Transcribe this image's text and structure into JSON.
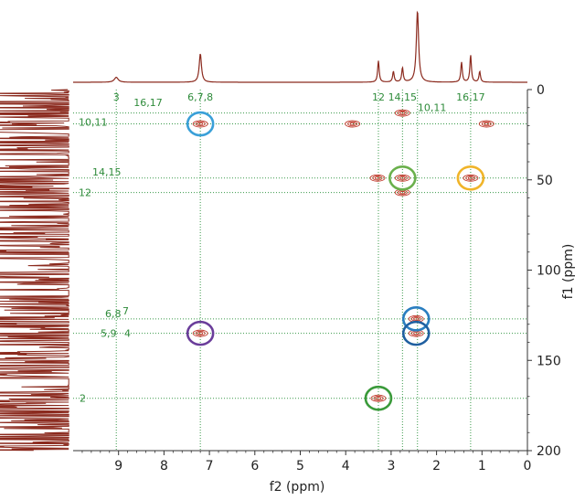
{
  "chart_data": {
    "type": "2d-nmr-hsqc-contour",
    "xlabel": "f2 (ppm)",
    "ylabel": "f1 (ppm)",
    "xlim": [
      10,
      0
    ],
    "ylim": [
      0,
      200
    ],
    "x_ticks": [
      "9",
      "8",
      "7",
      "6",
      "5",
      "4",
      "3",
      "2",
      "1",
      "0"
    ],
    "x_tick_values": [
      9,
      8,
      7,
      6,
      5,
      4,
      3,
      2,
      1,
      0
    ],
    "y_ticks": [
      "0",
      "50",
      "100",
      "150",
      "200"
    ],
    "y_tick_values": [
      0,
      50,
      100,
      150,
      200
    ],
    "projection_color": "#8b2a1e",
    "grid_color": "#3a9a4a",
    "label_color": "#2e8b3a",
    "contour_color": "#c0392b",
    "top_projection_peaks": [
      {
        "ppm": 9.05,
        "height": 0.07,
        "width": 0.05
      },
      {
        "ppm": 7.2,
        "height": 0.4,
        "width": 0.03
      },
      {
        "ppm": 3.28,
        "height": 0.3,
        "width": 0.02
      },
      {
        "ppm": 2.95,
        "height": 0.15,
        "width": 0.02
      },
      {
        "ppm": 2.75,
        "height": 0.2,
        "width": 0.02
      },
      {
        "ppm": 2.42,
        "height": 1.0,
        "width": 0.03
      },
      {
        "ppm": 1.45,
        "height": 0.28,
        "width": 0.02
      },
      {
        "ppm": 1.25,
        "height": 0.38,
        "width": 0.02
      },
      {
        "ppm": 1.05,
        "height": 0.15,
        "width": 0.02
      }
    ],
    "left_projection_peaks": [
      {
        "ppm": 13,
        "height": 1.0
      },
      {
        "ppm": 19,
        "height": 0.95
      },
      {
        "ppm": 49,
        "height": 0.65
      },
      {
        "ppm": 57,
        "height": 0.2
      },
      {
        "ppm": 127,
        "height": 0.75
      },
      {
        "ppm": 135,
        "height": 0.7
      },
      {
        "ppm": 171,
        "height": 0.5
      }
    ],
    "top_labels": [
      {
        "text": "3",
        "ppm": 9.05
      },
      {
        "text": "6,7,8",
        "ppm": 7.2
      },
      {
        "text": "12",
        "ppm": 3.28
      },
      {
        "text": "14,15",
        "ppm": 2.75
      },
      {
        "text": "16,17",
        "ppm": 1.25
      },
      {
        "text": "16,17",
        "ppm": 8.35,
        "f1": 10
      },
      {
        "text": "10,11",
        "ppm": 2.1,
        "f1": 13
      }
    ],
    "left_labels": [
      {
        "text": "10,11",
        "f1": 18
      },
      {
        "text": "14,15",
        "f1": 48
      },
      {
        "text": "12",
        "f1": 57
      },
      {
        "text": "6,8",
        "f1": 127
      },
      {
        "text": "7",
        "f1": 125
      },
      {
        "text": "5,9",
        "f1": 135
      },
      {
        "text": "4",
        "f1": 135
      },
      {
        "text": "2",
        "f1": 171
      }
    ],
    "vertical_lines_ppm": [
      9.05,
      7.2,
      3.28,
      2.75,
      2.42,
      1.25
    ],
    "horizontal_lines_f1": [
      13,
      19,
      49,
      57,
      127,
      135,
      171
    ],
    "cross_peaks": [
      {
        "f2": 7.2,
        "f1": 19
      },
      {
        "f2": 3.85,
        "f1": 19
      },
      {
        "f2": 2.75,
        "f1": 13
      },
      {
        "f2": 0.9,
        "f1": 19
      },
      {
        "f2": 3.3,
        "f1": 49
      },
      {
        "f2": 2.75,
        "f1": 49
      },
      {
        "f2": 2.75,
        "f1": 57
      },
      {
        "f2": 1.25,
        "f1": 49
      },
      {
        "f2": 2.45,
        "f1": 127
      },
      {
        "f2": 2.45,
        "f1": 135
      },
      {
        "f2": 7.2,
        "f1": 135
      },
      {
        "f2": 3.28,
        "f1": 171
      }
    ],
    "highlight_circles": [
      {
        "f2": 7.2,
        "f1": 19,
        "color": "#3aa0d8"
      },
      {
        "f2": 2.75,
        "f1": 49,
        "color": "#6ab04c"
      },
      {
        "f2": 1.25,
        "f1": 49,
        "color": "#f0b429"
      },
      {
        "f2": 2.45,
        "f1": 127,
        "color": "#2a7ec0"
      },
      {
        "f2": 2.45,
        "f1": 135,
        "color": "#1f5fa0"
      },
      {
        "f2": 7.2,
        "f1": 135,
        "color": "#6a3d9a"
      },
      {
        "f2": 3.28,
        "f1": 171,
        "color": "#3a9a3a"
      }
    ]
  }
}
